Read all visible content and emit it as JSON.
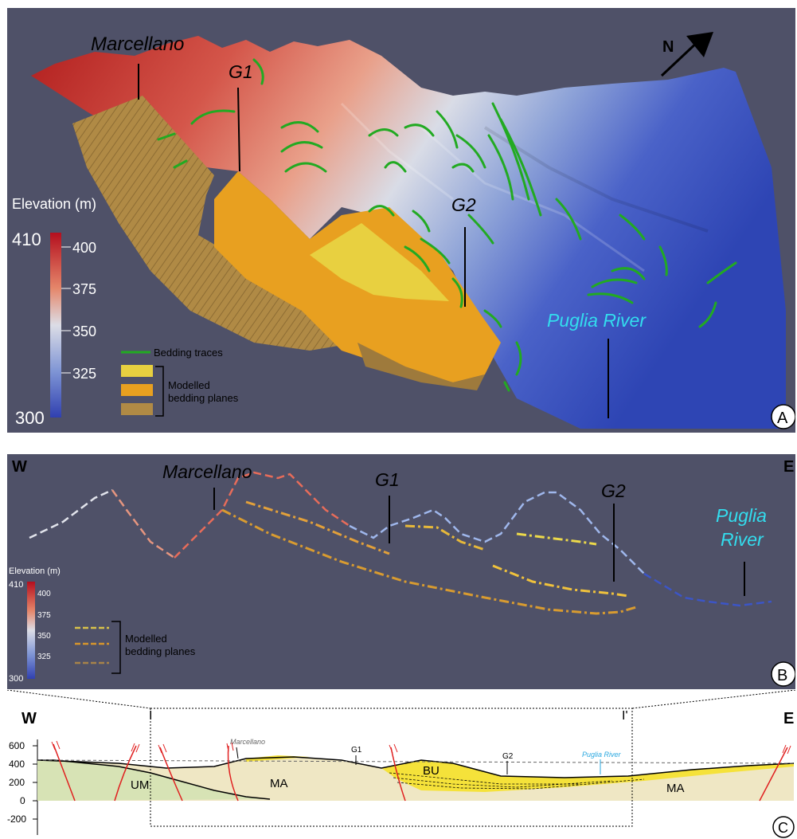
{
  "panel_a": {
    "letter": "A",
    "north_label": "N",
    "place_labels": {
      "marcellano": "Marcellano",
      "g1": "G1",
      "g2": "G2",
      "puglia_river": "Puglia River"
    },
    "colorbar": {
      "title": "Elevation (m)",
      "min_label": "410",
      "max_label": "300",
      "ticks": [
        "400",
        "375",
        "350",
        "325"
      ]
    },
    "legend": {
      "bedding_traces": "Bedding traces",
      "modelled_line1": "Modelled",
      "modelled_line2": "bedding planes"
    },
    "colors": {
      "trace": "#22aa22",
      "plane_yellow": "#e8d040",
      "plane_orange": "#e8a020",
      "plane_brown": "#b08a45"
    }
  },
  "panel_b": {
    "letter": "B",
    "west": "W",
    "east": "E",
    "place_labels": {
      "marcellano": "Marcellano",
      "g1": "G1",
      "g2": "G2",
      "puglia_river_line1": "Puglia",
      "puglia_river_line2": "River"
    },
    "colorbar": {
      "title": "Elevation (m)",
      "min_label": "410",
      "max_label": "300",
      "ticks": [
        "400",
        "375",
        "350",
        "325"
      ]
    },
    "legend": {
      "modelled_line1": "Modelled",
      "modelled_line2": "bedding planes"
    }
  },
  "panel_c": {
    "letter": "C",
    "west": "W",
    "east": "E",
    "section_start": "I",
    "section_end": "I'",
    "y_ticks": [
      "600",
      "400",
      "200",
      "0",
      "-200"
    ],
    "place_labels": {
      "marcellano": "Marcellano",
      "g1": "G1",
      "g2": "G2",
      "puglia_river": "Puglia River"
    },
    "units": {
      "um": "UM",
      "ma_left": "MA",
      "bu": "BU",
      "ma_right": "MA"
    },
    "colors": {
      "um_fill": "#d7e3b5",
      "ma_fill": "#efe7c4",
      "bu_fill": "#f5e23a",
      "fault": "#e02020",
      "river_label": "#2aa8e0"
    }
  }
}
